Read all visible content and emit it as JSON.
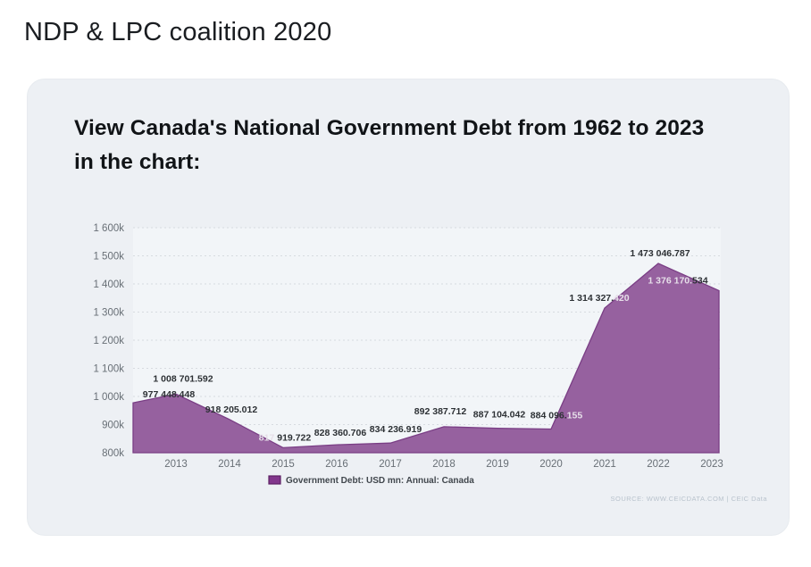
{
  "page": {
    "title": "NDP & LPC coalition 2020"
  },
  "card": {
    "heading_line1": "View Canada's National Government Debt from 1962 to 2023",
    "heading_line2": "in the chart:",
    "source": "SOURCE: WWW.CEICDATA.COM | CEIC Data"
  },
  "chart_data": {
    "type": "area",
    "title": "",
    "legend": "Government Debt: USD mn: Annual: Canada",
    "legend_position": "bottom",
    "grid": true,
    "ylim": [
      800000,
      1600000
    ],
    "ytick_step": 100000,
    "ytick_labels": [
      "800k",
      "900k",
      "1 000k",
      "1 100k",
      "1 200k",
      "1 300k",
      "1 400k",
      "1 500k",
      "1 600k"
    ],
    "x": [
      2012,
      2013,
      2014,
      2015,
      2016,
      2017,
      2018,
      2019,
      2020,
      2021,
      2022,
      2023
    ],
    "xtick_labels": [
      "2013",
      "2014",
      "2015",
      "2016",
      "2017",
      "2018",
      "2019",
      "2020",
      "2021",
      "2022",
      "2023"
    ],
    "series": [
      {
        "name": "Government Debt: USD mn: Annual: Canada",
        "values": [
          977448.448,
          1008701.592,
          918205.012,
          817919.722,
          828360.706,
          834236.919,
          892387.712,
          887104.042,
          884096.155,
          1314327.42,
          1473046.787,
          1376170.534
        ]
      }
    ],
    "point_labels": [
      {
        "year": 2012,
        "parts": [
          {
            "text": "977 448.448",
            "tone": "dark"
          }
        ]
      },
      {
        "year": 2013,
        "parts": [
          {
            "text": "1 008 701.592",
            "tone": "dark"
          }
        ]
      },
      {
        "year": 2014,
        "parts": [
          {
            "text": "918 205.012",
            "tone": "dark"
          }
        ]
      },
      {
        "year": 2015,
        "parts": [
          {
            "text": "817 ",
            "tone": "light"
          },
          {
            "text": "919.722",
            "tone": "dark"
          }
        ]
      },
      {
        "year": 2016,
        "parts": [
          {
            "text": "828 360.706",
            "tone": "dark"
          }
        ]
      },
      {
        "year": 2017,
        "parts": [
          {
            "text": "834 236.919",
            "tone": "dark"
          }
        ]
      },
      {
        "year": 2018,
        "parts": [
          {
            "text": "892 387.712",
            "tone": "dark"
          }
        ]
      },
      {
        "year": 2019,
        "parts": [
          {
            "text": "887 104.042",
            "tone": "dark"
          }
        ]
      },
      {
        "year": 2020,
        "parts": [
          {
            "text": "884 096.",
            "tone": "dark"
          },
          {
            "text": "155",
            "tone": "light"
          }
        ]
      },
      {
        "year": 2021,
        "parts": [
          {
            "text": "1 314 327.",
            "tone": "dark"
          },
          {
            "text": "420",
            "tone": "light"
          }
        ]
      },
      {
        "year": 2022,
        "parts": [
          {
            "text": "1 473 046.787",
            "tone": "dark"
          }
        ]
      },
      {
        "year": 2023,
        "parts": [
          {
            "text": "1 376 170.",
            "tone": "light"
          },
          {
            "text": "534",
            "tone": "dark"
          }
        ]
      }
    ],
    "colors": {
      "area_fill": "#96619f",
      "area_stroke": "#7a3e85",
      "plot_bg": "#f2f5f8",
      "gridline": "#d7dbe0",
      "axis_text": "#686f76",
      "label_dark": "#2d3135",
      "label_light": "#e6dfe9",
      "legend_swatch_fill": "#82368c",
      "legend_swatch_stroke": "#5c2063",
      "legend_text": "#41474d",
      "source_text": "#b9c3cd"
    }
  }
}
